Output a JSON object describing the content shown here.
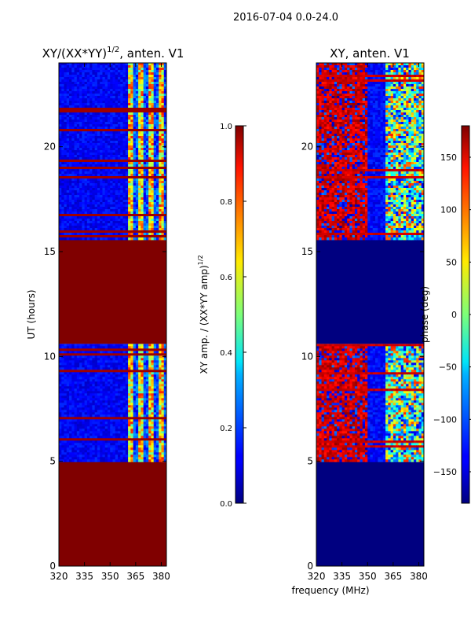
{
  "figure_title": "2016-07-04 0.0-24.0",
  "chart_data": [
    {
      "type": "heatmap",
      "title_main": "XY/(XX*YY)",
      "title_sup": "1/2",
      "title_tail": ", anten. V1",
      "ylabel": "UT (hours)",
      "xlabel": "",
      "xlim": [
        320,
        383
      ],
      "ylim": [
        0,
        24
      ],
      "xticks": [
        320,
        335,
        350,
        365,
        380
      ],
      "yticks": [
        0,
        5,
        10,
        15,
        20
      ],
      "colormap": "jet",
      "colorbar": {
        "label_main": "XY amp. / (XX*YY amp)",
        "label_sup": "1/2",
        "range": [
          0.0,
          1.0
        ],
        "ticks": [
          "0.0",
          "0.2",
          "0.4",
          "0.6",
          "0.8",
          "1.0"
        ]
      },
      "regions": [
        {
          "t0": 0.0,
          "t1": 5.0,
          "value": 1.0,
          "note": "saturated (no data)"
        },
        {
          "t0": 5.0,
          "t1": 10.6,
          "value": 0.08,
          "note": "low amplitude, bright channels 360-380 MHz"
        },
        {
          "t0": 10.6,
          "t1": 15.6,
          "value": 1.0,
          "note": "saturated (no data)"
        },
        {
          "t0": 15.6,
          "t1": 24.0,
          "value": 0.08,
          "note": "low amplitude, bright channels 360-380 MHz"
        }
      ]
    },
    {
      "type": "heatmap",
      "title": "XY, anten. V1",
      "ylabel": "",
      "xlabel": "frequency (MHz)",
      "xlim": [
        320,
        383
      ],
      "ylim": [
        0,
        24
      ],
      "xticks": [
        320,
        335,
        350,
        365,
        380
      ],
      "yticks": [
        0,
        5,
        10,
        15,
        20
      ],
      "colormap": "jet",
      "colorbar": {
        "label": "phase (deg)",
        "range": [
          -180,
          180
        ],
        "ticks": [
          "-150",
          "-100",
          "-50",
          "0",
          "50",
          "100",
          "150"
        ]
      },
      "regions": [
        {
          "t0": 0.0,
          "t1": 5.0,
          "value": -180,
          "note": "no data"
        },
        {
          "t0": 5.0,
          "t1": 10.6,
          "value": 140,
          "note": "mixed phase"
        },
        {
          "t0": 10.6,
          "t1": 15.6,
          "value": -180,
          "note": "no data"
        },
        {
          "t0": 15.6,
          "t1": 24.0,
          "value": 140,
          "note": "mixed phase"
        }
      ]
    }
  ]
}
